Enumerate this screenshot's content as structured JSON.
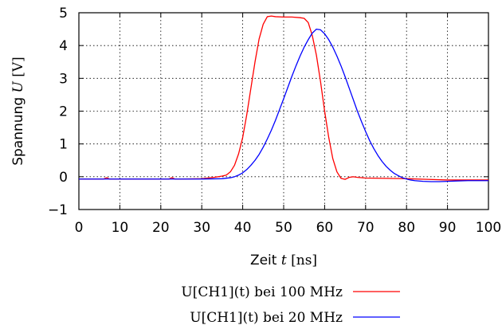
{
  "chart_data": {
    "type": "line",
    "xlabel": {
      "prefix": "Zeit ",
      "symbol": "t",
      "unit": " [ns]"
    },
    "ylabel": {
      "prefix": "Spannung ",
      "symbol": "U",
      "unit": " [V]"
    },
    "xlim": [
      0,
      100
    ],
    "ylim": [
      -1,
      5
    ],
    "xticks": [
      0,
      10,
      20,
      30,
      40,
      50,
      60,
      70,
      80,
      90,
      100
    ],
    "yticks": [
      -1,
      0,
      1,
      2,
      3,
      4,
      5
    ],
    "ytick_labels": [
      "−1",
      "0",
      "1",
      "2",
      "3",
      "4",
      "5"
    ],
    "grid": true,
    "legend_position": "bottom-center",
    "series": [
      {
        "name": "U[CH1](t) bei 100 MHz",
        "color": "#ff0000",
        "x": [
          0,
          5,
          6,
          6.8,
          7.5,
          10,
          20,
          22,
          22.7,
          23.5,
          25,
          30,
          33,
          35,
          36,
          37,
          38,
          39,
          40,
          41,
          42,
          43,
          44,
          45,
          46,
          47,
          48,
          50,
          52,
          54,
          55,
          56,
          57,
          58,
          59,
          60,
          61,
          62,
          63,
          64,
          65,
          66,
          67,
          68,
          70,
          75,
          80,
          85,
          90,
          95,
          100
        ],
        "y": [
          -0.07,
          -0.07,
          -0.07,
          -0.03,
          -0.07,
          -0.07,
          -0.07,
          -0.07,
          -0.03,
          -0.07,
          -0.07,
          -0.06,
          -0.02,
          0.02,
          0.05,
          0.15,
          0.35,
          0.7,
          1.2,
          1.9,
          2.7,
          3.5,
          4.2,
          4.65,
          4.88,
          4.9,
          4.88,
          4.87,
          4.87,
          4.85,
          4.83,
          4.7,
          4.3,
          3.7,
          2.9,
          2.0,
          1.2,
          0.55,
          0.15,
          -0.05,
          -0.08,
          -0.02,
          0.0,
          -0.02,
          -0.04,
          -0.05,
          -0.06,
          -0.08,
          -0.1,
          -0.1,
          -0.1
        ]
      },
      {
        "name": "U[CH1](t) bei 20 MHz",
        "color": "#0000ff",
        "x": [
          0,
          10,
          20,
          30,
          35,
          37,
          38,
          39,
          40,
          41,
          42,
          43,
          44,
          45,
          46,
          47,
          48,
          49,
          50,
          51,
          52,
          53,
          54,
          55,
          56,
          57,
          58,
          59,
          60,
          61,
          62,
          63,
          64,
          65,
          66,
          67,
          68,
          69,
          70,
          71,
          72,
          73,
          74,
          75,
          76,
          77,
          78,
          79,
          80,
          81,
          82,
          84,
          86,
          88,
          90,
          92,
          95,
          100
        ],
        "y": [
          -0.07,
          -0.07,
          -0.07,
          -0.07,
          -0.06,
          -0.03,
          0.0,
          0.05,
          0.12,
          0.22,
          0.35,
          0.5,
          0.68,
          0.9,
          1.15,
          1.42,
          1.72,
          2.05,
          2.38,
          2.72,
          3.06,
          3.38,
          3.68,
          3.95,
          4.18,
          4.38,
          4.5,
          4.48,
          4.36,
          4.18,
          3.95,
          3.68,
          3.38,
          3.05,
          2.7,
          2.35,
          2.0,
          1.68,
          1.38,
          1.1,
          0.86,
          0.65,
          0.47,
          0.32,
          0.2,
          0.1,
          0.03,
          -0.03,
          -0.07,
          -0.1,
          -0.12,
          -0.14,
          -0.15,
          -0.15,
          -0.14,
          -0.13,
          -0.12,
          -0.12
        ]
      }
    ]
  }
}
